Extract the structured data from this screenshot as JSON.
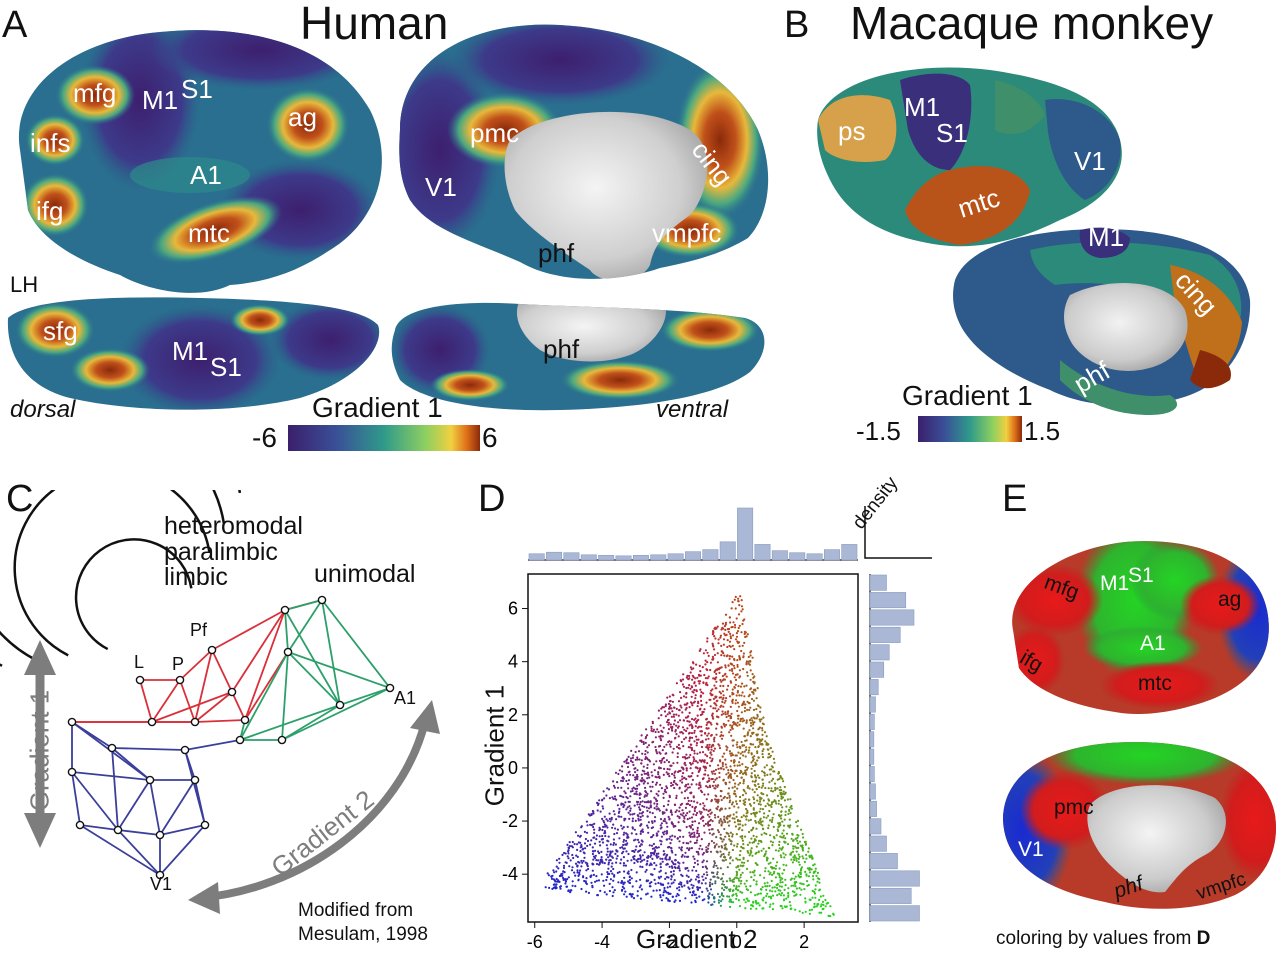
{
  "panelA": {
    "letter": "A",
    "title": "Human",
    "lateral_labels": [
      "mfg",
      "M1",
      "S1",
      "ag",
      "infs",
      "ifg",
      "A1",
      "mtc",
      "LH"
    ],
    "medial_labels": [
      "pmc",
      "cing",
      "V1",
      "vmpfc",
      "phf"
    ],
    "dorsal_labels": [
      "sfg",
      "M1",
      "S1"
    ],
    "ventral_labels": [
      "phf"
    ],
    "dorsal_caption": "dorsal",
    "ventral_caption": "ventral",
    "colorbar": {
      "title": "Gradient 1",
      "min": "-6",
      "max": "6"
    }
  },
  "panelB": {
    "letter": "B",
    "title": "Macaque monkey",
    "lateral_labels": [
      "ps",
      "M1",
      "S1",
      "V1",
      "mtc"
    ],
    "medial_labels": [
      "M1",
      "cing",
      "phf"
    ],
    "colorbar": {
      "title": "Gradient 1",
      "min": "-1.5",
      "max": "1.5"
    }
  },
  "panelC": {
    "letter": "C",
    "ring_labels": [
      "heteromodal",
      "paralimbic",
      "limbic",
      "unimodal"
    ],
    "node_labels": [
      "Pf",
      "L",
      "P",
      "A1",
      "V1"
    ],
    "axis1": "Gradient 1",
    "axis2": "Gradient 2",
    "credit_line1": "Modified from",
    "credit_line2": "Mesulam, 1998",
    "colors": {
      "red": "#d9303a",
      "green": "#2ca06a",
      "blue": "#3a3f9a",
      "arrow": "#7d7d7d"
    }
  },
  "panelD": {
    "letter": "D",
    "density_label": "density"
  },
  "panelE": {
    "letter": "E",
    "lateral_labels": [
      "mfg",
      "M1",
      "S1",
      "ag",
      "A1",
      "ifg",
      "mtc"
    ],
    "medial_labels": [
      "pmc",
      "V1",
      "phf",
      "vmpfc"
    ],
    "caption": "coloring by values from ",
    "caption_bold": "D"
  },
  "chart_data": {
    "type": "scatter",
    "title": "",
    "xlabel": "Gradient 2",
    "ylabel": "Gradient 1",
    "xlim": [
      -6.2,
      3.6
    ],
    "ylim": [
      -5.8,
      7.3
    ],
    "xticks": [
      -6,
      -4,
      -2,
      0,
      2
    ],
    "yticks": [
      6,
      4,
      2,
      0,
      -2,
      -4
    ],
    "grid": false,
    "shape_outline": [
      [
        0.1,
        6.7
      ],
      [
        -5.9,
        -4.5
      ],
      [
        -4.9,
        -4.7
      ],
      [
        2.9,
        -5.6
      ],
      [
        0.9,
        1.2
      ]
    ],
    "colors": {
      "high_gradient1": "#e0201a",
      "low_gradient2": "#1a28d0",
      "high_gradient2": "#28d020"
    },
    "marginal_x": {
      "label": "density",
      "bins": [
        -6,
        -5.5,
        -5,
        -4.5,
        -4,
        -3.5,
        -3,
        -2.5,
        -2,
        -1.5,
        -1,
        -0.5,
        0,
        0.5,
        1,
        1.5,
        2,
        2.5,
        3
      ],
      "values": [
        0.12,
        0.15,
        0.14,
        0.1,
        0.09,
        0.08,
        0.09,
        0.1,
        0.12,
        0.16,
        0.2,
        0.35,
        1.0,
        0.3,
        0.18,
        0.14,
        0.12,
        0.2,
        0.3
      ]
    },
    "marginal_y": {
      "bins": [
        7,
        6.5,
        6,
        5.5,
        5,
        4.5,
        4,
        3.5,
        3,
        2,
        1,
        0,
        -1,
        -2,
        -3,
        -3.5,
        -4,
        -4.5,
        -5,
        -5.5
      ],
      "values": [
        0.3,
        0.65,
        0.8,
        0.55,
        0.35,
        0.25,
        0.15,
        0.1,
        0.08,
        0.07,
        0.07,
        0.08,
        0.1,
        0.12,
        0.2,
        0.3,
        0.5,
        0.9,
        0.75,
        0.9
      ]
    }
  }
}
